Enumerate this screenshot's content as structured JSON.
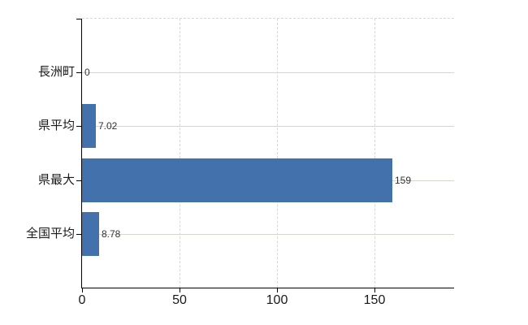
{
  "chart_data": {
    "type": "bar",
    "orientation": "horizontal",
    "title": "",
    "xlabel": "",
    "ylabel": "",
    "categories": [
      "長洲町",
      "県平均",
      "県最大",
      "全国平均"
    ],
    "series": [
      {
        "name": "値",
        "values": [
          0,
          7.02,
          159,
          8.78
        ]
      }
    ],
    "value_labels": [
      "0",
      "7.02",
      "159",
      "8.78"
    ],
    "x_axis": {
      "ticks": [
        0,
        50,
        100,
        150
      ],
      "tick_labels": [
        "0",
        "50",
        "100",
        "150"
      ],
      "range": [
        0,
        191
      ]
    },
    "grid": {
      "horizontal_lines": "solid",
      "vertical_lines": "dashed",
      "top_border": "dashed",
      "right_border": "none"
    },
    "legend": "none",
    "colors": {
      "bar": "#4271ac",
      "axis": "#000000",
      "grid_solid": "#d2d8cb",
      "grid_dashed": "#d8d8d8",
      "label_text": "#1a1a1a",
      "value_text": "#333333",
      "background": "#ffffff"
    }
  }
}
